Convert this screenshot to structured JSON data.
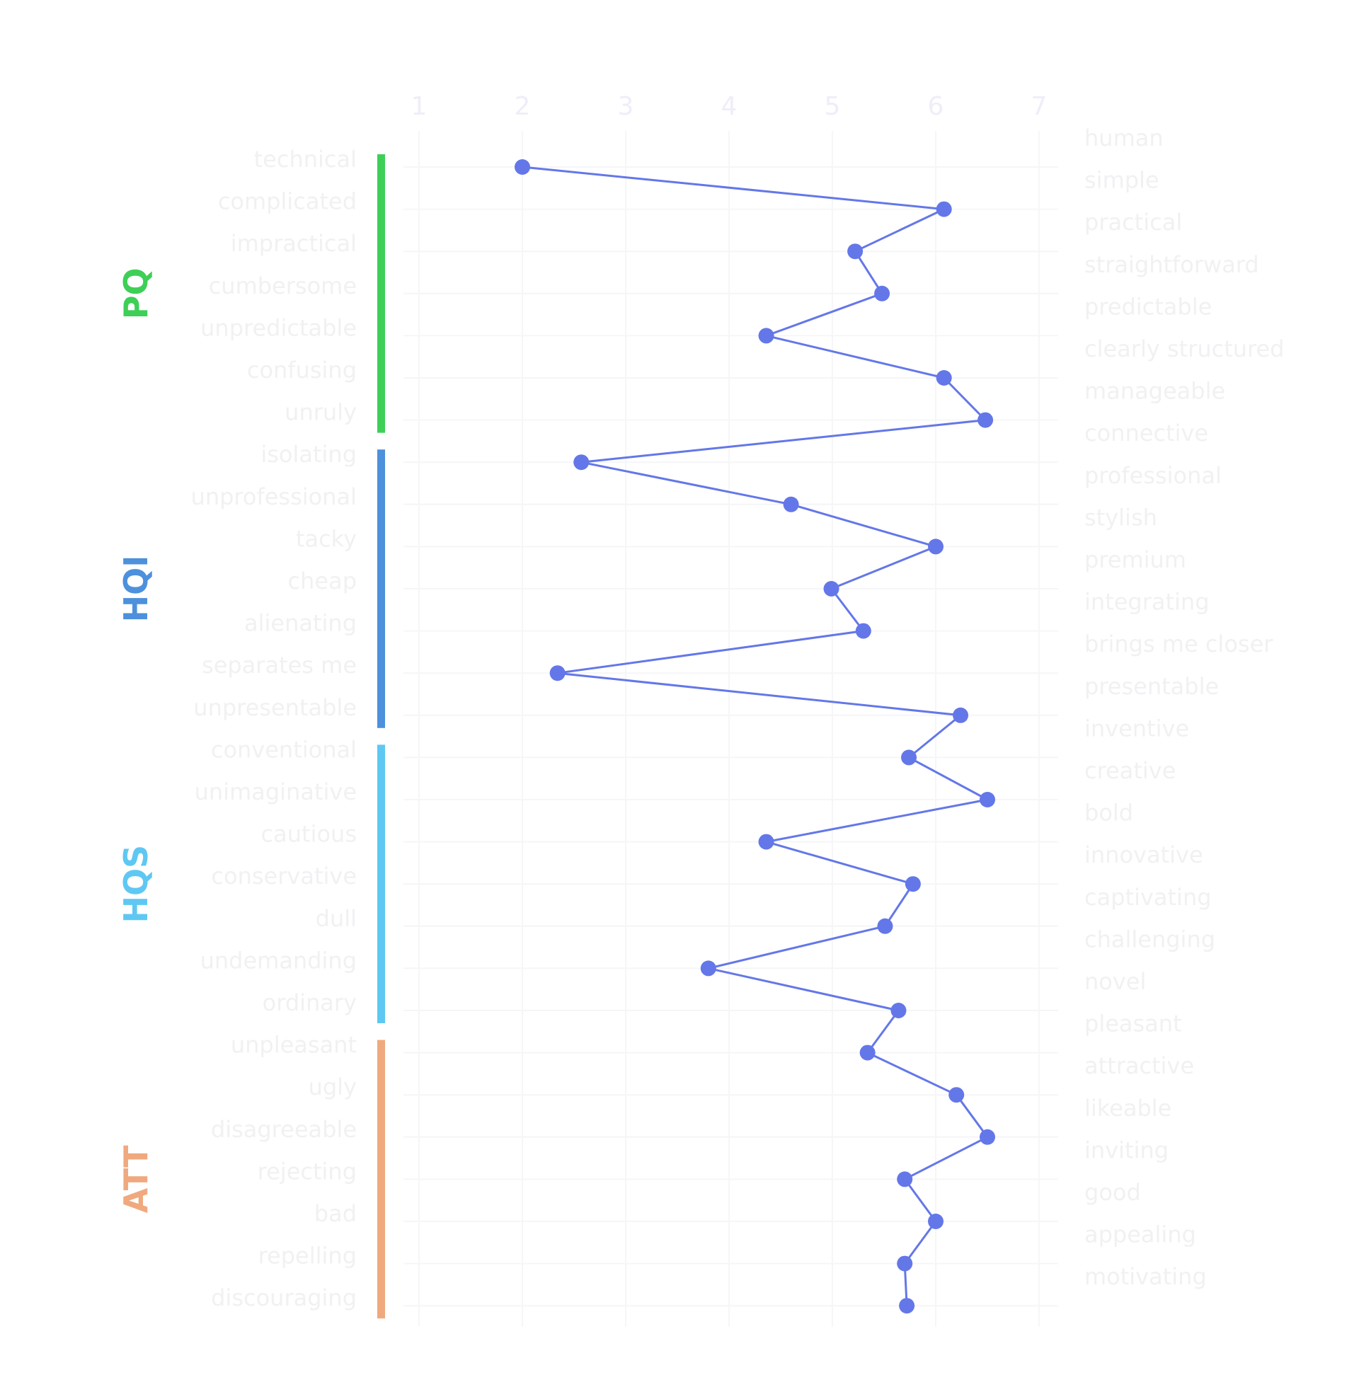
{
  "chart_data": {
    "type": "line",
    "title": "",
    "xlabel": "",
    "ylabel": "",
    "xlim": [
      1,
      7
    ],
    "x_ticks": [
      "1",
      "2",
      "3",
      "4",
      "5",
      "6",
      "7"
    ],
    "grid": true,
    "line_color": "#6477e8",
    "groups": [
      {
        "name": "PQ",
        "color": "#3ecf56",
        "items": [
          0,
          6
        ]
      },
      {
        "name": "HQI",
        "color": "#4d90dc",
        "items": [
          7,
          13
        ]
      },
      {
        "name": "HQS",
        "color": "#5ec8f2",
        "items": [
          14,
          20
        ]
      },
      {
        "name": "ATT",
        "color": "#f0a97e",
        "items": [
          21,
          27
        ]
      }
    ],
    "items": [
      {
        "left": "technical",
        "right": "human",
        "value": 2.0
      },
      {
        "left": "complicated",
        "right": "simple",
        "value": 6.08
      },
      {
        "left": "impractical",
        "right": "practical",
        "value": 5.22
      },
      {
        "left": "cumbersome",
        "right": "straightforward",
        "value": 5.48
      },
      {
        "left": "unpredictable",
        "right": "predictable",
        "value": 4.36
      },
      {
        "left": "confusing",
        "right": "clearly structured",
        "value": 6.08
      },
      {
        "left": "unruly",
        "right": "manageable",
        "value": 6.48
      },
      {
        "left": "isolating",
        "right": "connective",
        "value": 2.57
      },
      {
        "left": "unprofessional",
        "right": "professional",
        "value": 4.6
      },
      {
        "left": "tacky",
        "right": "stylish",
        "value": 6.0
      },
      {
        "left": "cheap",
        "right": "premium",
        "value": 4.99
      },
      {
        "left": "alienating",
        "right": "integrating",
        "value": 5.3
      },
      {
        "left": "separates me",
        "right": "brings me closer",
        "value": 2.34
      },
      {
        "left": "unpresentable",
        "right": "presentable",
        "value": 6.24
      },
      {
        "left": "conventional",
        "right": "inventive",
        "value": 5.74
      },
      {
        "left": "unimaginative",
        "right": "creative",
        "value": 6.5
      },
      {
        "left": "cautious",
        "right": "bold",
        "value": 4.36
      },
      {
        "left": "conservative",
        "right": "innovative",
        "value": 5.78
      },
      {
        "left": "dull",
        "right": "captivating",
        "value": 5.51
      },
      {
        "left": "undemanding",
        "right": "challenging",
        "value": 3.8
      },
      {
        "left": "ordinary",
        "right": "novel",
        "value": 5.64
      },
      {
        "left": "unpleasant",
        "right": "pleasant",
        "value": 5.34
      },
      {
        "left": "ugly",
        "right": "attractive",
        "value": 6.2
      },
      {
        "left": "disagreeable",
        "right": "likeable",
        "value": 6.5
      },
      {
        "left": "rejecting",
        "right": "inviting",
        "value": 5.7
      },
      {
        "left": "bad",
        "right": "good",
        "value": 6.0
      },
      {
        "left": "repelling",
        "right": "appealing",
        "value": 5.7
      },
      {
        "left": "discouraging",
        "right": "motivating",
        "value": 5.72
      }
    ]
  }
}
